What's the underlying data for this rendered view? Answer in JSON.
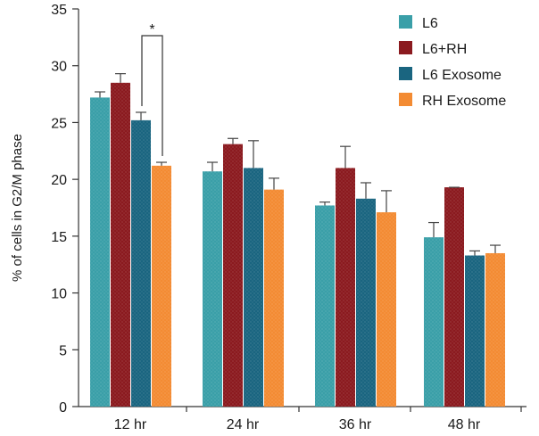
{
  "chart_data": {
    "type": "bar",
    "title": "",
    "xlabel": "",
    "ylabel": "% of cells in G2/M phase",
    "ylim": [
      0,
      35
    ],
    "yticks": [
      0,
      5,
      10,
      15,
      20,
      25,
      30,
      35
    ],
    "grid": false,
    "legend_position": "top-right",
    "categories": [
      "12 hr",
      "24 hr",
      "36 hr",
      "48 hr"
    ],
    "series": [
      {
        "name": "L6",
        "color": "#3a9fa8",
        "values": [
          27.2,
          20.7,
          17.7,
          14.9
        ],
        "errors": [
          0.5,
          0.8,
          0.3,
          1.3
        ]
      },
      {
        "name": "L6+RH",
        "color": "#8b1a1f",
        "values": [
          28.5,
          23.1,
          21.0,
          19.3
        ],
        "errors": [
          0.8,
          0.5,
          1.9,
          0.0
        ]
      },
      {
        "name": "L6 Exosome",
        "color": "#1a6580",
        "values": [
          25.2,
          21.0,
          18.3,
          13.3
        ],
        "errors": [
          0.7,
          2.4,
          1.4,
          0.4
        ]
      },
      {
        "name": "RH Exosome",
        "color": "#f38b33",
        "values": [
          21.2,
          19.1,
          17.1,
          13.5
        ],
        "errors": [
          0.3,
          1.0,
          1.9,
          0.7
        ]
      }
    ],
    "annotations": [
      {
        "text": "*",
        "category": "12 hr",
        "between": [
          "L6 Exosome",
          "RH Exosome"
        ],
        "type": "significance-bracket"
      }
    ]
  }
}
